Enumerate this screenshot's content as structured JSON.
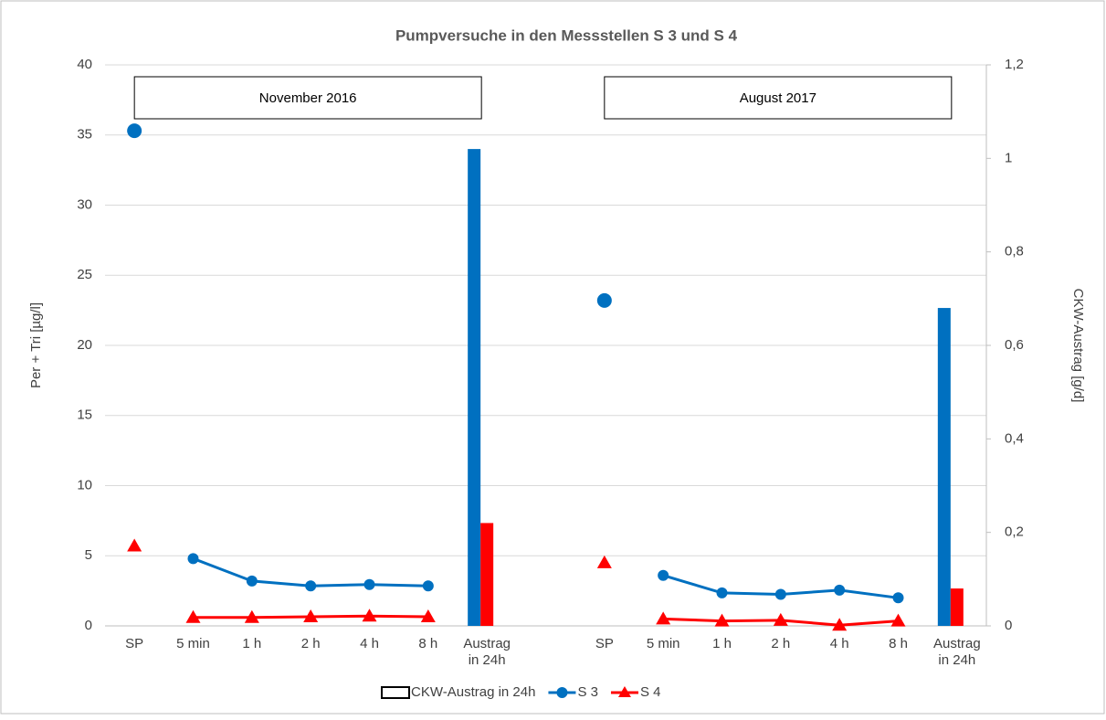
{
  "chart_data": {
    "type": "combo",
    "title": "Pumpversuche in den Messstellen S 3 und S 4",
    "y_label": "Per + Tri [µg/l]",
    "y2_label": "CKW-Austrag [g/d]",
    "annotations": [
      "November 2016",
      "August 2017"
    ],
    "categories": [
      "SP",
      "5 min",
      "1 h",
      "2 h",
      "4 h",
      "8 h",
      "Austrag\nin 24h",
      null,
      "SP",
      "5 min",
      "1 h",
      "2 h",
      "4 h",
      "8 h",
      "Austrag\nin 24h"
    ],
    "ylim": [
      0,
      40
    ],
    "yticks": [
      0,
      5,
      10,
      15,
      20,
      25,
      30,
      35,
      40
    ],
    "y2lim": [
      0,
      1.2
    ],
    "y2ticks": [
      0,
      {
        "value": 0.2,
        "label": "0,2"
      },
      {
        "value": 0.4,
        "label": "0,4"
      },
      {
        "value": 0.6,
        "label": "0,6"
      },
      {
        "value": 0.8,
        "label": "0,8"
      },
      1,
      {
        "value": 1.2,
        "label": "1,2"
      }
    ],
    "grid": true,
    "series": [
      {
        "name": "CKW-Austrag in 24h",
        "type": "bar",
        "axis": "y2",
        "color": "#0070c0",
        "legend_color": "#ffffff",
        "values": [
          null,
          null,
          null,
          null,
          null,
          null,
          1.02,
          null,
          null,
          null,
          null,
          null,
          null,
          null,
          0.68
        ]
      },
      {
        "type": "bar",
        "axis": "y2",
        "color": "#ff0000",
        "values": [
          null,
          null,
          null,
          null,
          null,
          null,
          0.22,
          null,
          null,
          null,
          null,
          null,
          null,
          null,
          0.08
        ]
      },
      {
        "name": "S 3",
        "type": "line",
        "marker": "circle",
        "color": "#0070c0",
        "values": [
          null,
          4.8,
          3.2,
          2.85,
          2.95,
          2.85,
          null,
          null,
          null,
          3.6,
          2.35,
          2.25,
          2.55,
          2.0,
          null
        ]
      },
      {
        "name": "S 4",
        "type": "line",
        "marker": "triangle",
        "color": "#ff0000",
        "values": [
          null,
          0.6,
          0.6,
          0.65,
          0.7,
          0.65,
          null,
          null,
          null,
          0.5,
          0.35,
          0.4,
          0.05,
          0.35,
          null
        ]
      },
      {
        "type": "points",
        "marker": "circle",
        "color": "#0070c0",
        "values": [
          35.3,
          null,
          null,
          null,
          null,
          null,
          null,
          null,
          23.2,
          null,
          null,
          null,
          null,
          null,
          null
        ]
      },
      {
        "type": "points",
        "marker": "triangle",
        "color": "#ff0000",
        "values": [
          5.7,
          null,
          null,
          null,
          null,
          null,
          null,
          null,
          4.5,
          null,
          null,
          null,
          null,
          null,
          null
        ]
      }
    ]
  }
}
